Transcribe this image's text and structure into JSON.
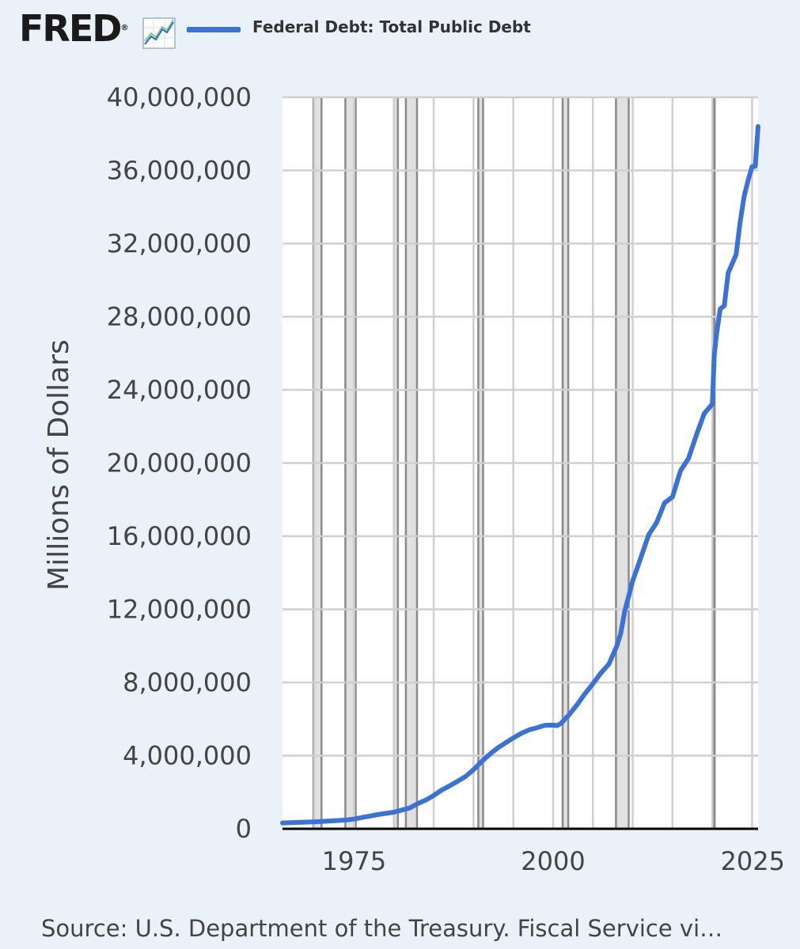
{
  "brand": {
    "logo_text": "FRED",
    "logo_mark": "®"
  },
  "colors": {
    "background": "#eaf1f9",
    "plot_background": "#ffffff",
    "series": "#3a72d8",
    "recession_fill": "#e1e1e1",
    "recession_line": "#8a8a8a",
    "grid": "#cfcfcf",
    "axis": "#000000"
  },
  "icons": {
    "logo": "chart-trend-icon"
  },
  "source": "Source: U.S. Department of the Treasury. Fiscal Service vi…",
  "chart_data": {
    "type": "line",
    "title": "",
    "xlabel": "",
    "ylabel": "Millions of Dollars",
    "xlim": [
      1966,
      2025.75
    ],
    "ylim": [
      0,
      40000000
    ],
    "x_ticks": [
      1975,
      2000,
      2025
    ],
    "y_ticks": [
      0,
      4000000,
      8000000,
      12000000,
      16000000,
      20000000,
      24000000,
      28000000,
      32000000,
      36000000,
      40000000
    ],
    "y_tick_labels": [
      "0",
      "4,000,000",
      "8,000,000",
      "12,000,000",
      "16,000,000",
      "20,000,000",
      "24,000,000",
      "28,000,000",
      "32,000,000",
      "36,000,000",
      "40,000,000"
    ],
    "grid": true,
    "legend": "top",
    "recessions": [
      [
        1969.9,
        1970.9
      ],
      [
        1973.9,
        1975.2
      ],
      [
        1980.0,
        1980.5
      ],
      [
        1981.5,
        1982.9
      ],
      [
        1990.6,
        1991.2
      ],
      [
        2001.2,
        2001.9
      ],
      [
        2007.9,
        2009.5
      ],
      [
        2020.1,
        2020.3
      ]
    ],
    "series": [
      {
        "name": "Federal Debt: Total Public Debt",
        "x": [
          1966,
          1968,
          1970,
          1972,
          1974,
          1975,
          1976,
          1978,
          1980,
          1982,
          1983,
          1984,
          1985,
          1986,
          1987,
          1988,
          1989,
          1990,
          1991,
          1992,
          1993,
          1994,
          1995,
          1996,
          1997,
          1998,
          1999,
          2000,
          2000.5,
          2001,
          2002,
          2003,
          2004,
          2005,
          2006,
          2007,
          2008,
          2008.5,
          2009,
          2010,
          2011,
          2012,
          2013,
          2014,
          2015,
          2016,
          2017,
          2018,
          2019,
          2020,
          2020.25,
          2020.5,
          2021,
          2021.5,
          2022,
          2022.5,
          2023,
          2023.5,
          2024,
          2024.5,
          2025,
          2025.4,
          2025.75
        ],
        "values": [
          320000,
          350000,
          380000,
          430000,
          480000,
          530000,
          620000,
          780000,
          910000,
          1140000,
          1380000,
          1570000,
          1820000,
          2120000,
          2350000,
          2600000,
          2860000,
          3230000,
          3670000,
          4060000,
          4410000,
          4690000,
          4970000,
          5220000,
          5410000,
          5530000,
          5660000,
          5670000,
          5640000,
          5770000,
          6230000,
          6780000,
          7380000,
          7930000,
          8510000,
          9000000,
          10000000,
          10700000,
          11900000,
          13560000,
          14790000,
          16070000,
          16740000,
          17820000,
          18150000,
          19570000,
          20240000,
          21520000,
          22720000,
          23220000,
          25900000,
          26950000,
          28430000,
          28600000,
          30400000,
          30900000,
          31400000,
          33200000,
          34580000,
          35460000,
          36210000,
          36220000,
          38400000
        ]
      }
    ]
  }
}
